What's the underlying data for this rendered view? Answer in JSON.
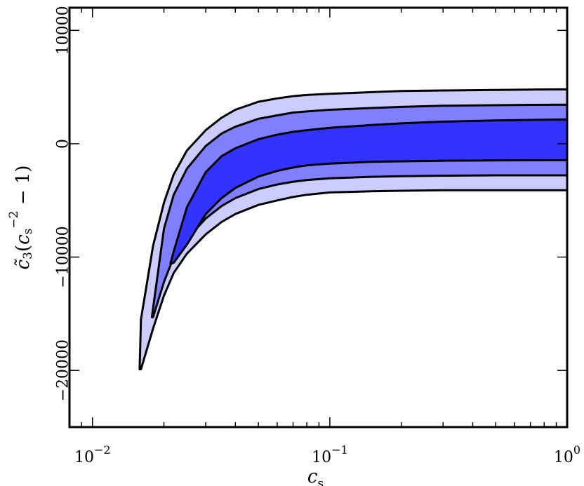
{
  "chart_data": {
    "type": "area",
    "title": "",
    "xlabel": "c_s",
    "ylabel": "c̃_3(c_s^{-2} − 1)",
    "xscale": "log",
    "xlim": [
      0.008,
      1.0
    ],
    "ylim": [
      -25000,
      12000
    ],
    "grid": false,
    "legend": "none",
    "x_ticks": [
      {
        "value": 0.01,
        "base": "10",
        "exp": "−2"
      },
      {
        "value": 0.1,
        "base": "10",
        "exp": "−1"
      },
      {
        "value": 1,
        "base": "10",
        "exp": "0"
      }
    ],
    "y_ticks": [
      {
        "value": 10000,
        "label": "10000"
      },
      {
        "value": 0,
        "label": "0"
      },
      {
        "value": -10000,
        "label": "−10000"
      },
      {
        "value": -20000,
        "label": "−20000"
      }
    ],
    "x": [
      0.016,
      0.018,
      0.02,
      0.022,
      0.025,
      0.03,
      0.035,
      0.04,
      0.05,
      0.06,
      0.07,
      0.08,
      0.1,
      0.15,
      0.2,
      0.3,
      0.5,
      0.7,
      1.0
    ],
    "bands": [
      {
        "level": "outer",
        "color": "#ccccff",
        "tip": [
          0.0158,
          -19900
        ],
        "lower": [
          -19900,
          -16300,
          -13400,
          -11400,
          -9700,
          -8000,
          -6900,
          -6200,
          -5400,
          -5000,
          -4700,
          -4500,
          -4300,
          -4200,
          -4150,
          -4100,
          -4100,
          -4100,
          -4100
        ],
        "upper": [
          -15500,
          -9000,
          -5200,
          -2700,
          -600,
          1200,
          2300,
          3000,
          3700,
          4000,
          4200,
          4300,
          4400,
          4550,
          4650,
          4700,
          4750,
          4780,
          4800
        ]
      },
      {
        "level": "middle",
        "color": "#8080ff",
        "tip": [
          0.0178,
          -15300
        ],
        "lower": [
          null,
          -15300,
          -12200,
          -10000,
          -8400,
          -6600,
          -5500,
          -4800,
          -4000,
          -3600,
          -3350,
          -3200,
          -3050,
          -2920,
          -2870,
          -2820,
          -2790,
          -2790,
          -2790
        ],
        "upper": [
          null,
          -14500,
          -7500,
          -4500,
          -2200,
          -200,
          900,
          1500,
          2200,
          2500,
          2750,
          2850,
          3000,
          3150,
          3250,
          3350,
          3400,
          3430,
          3450
        ]
      },
      {
        "level": "inner",
        "color": "#3333ff",
        "tip": [
          0.0213,
          -10600
        ],
        "lower": [
          null,
          null,
          null,
          -10500,
          -8900,
          -6200,
          -4800,
          -3900,
          -2900,
          -2400,
          -2100,
          -1900,
          -1750,
          -1600,
          -1550,
          -1500,
          -1470,
          -1460,
          -1450
        ],
        "upper": [
          null,
          null,
          null,
          -9500,
          -5600,
          -2500,
          -1100,
          -400,
          400,
          800,
          1050,
          1200,
          1400,
          1650,
          1800,
          1950,
          2050,
          2100,
          2150
        ]
      }
    ]
  }
}
